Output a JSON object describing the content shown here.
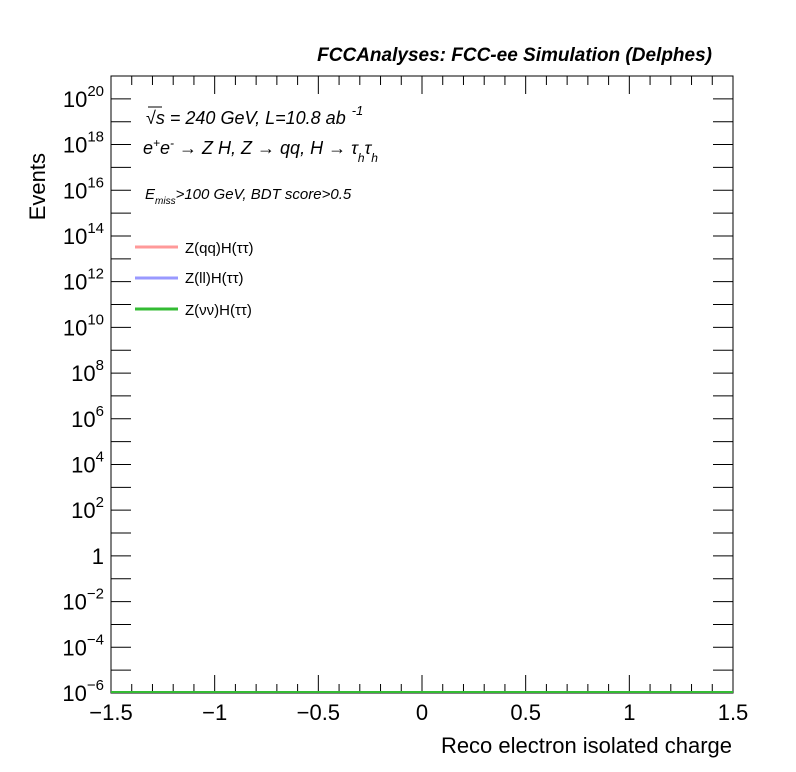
{
  "header": {
    "title": "FCCAnalyses: FCC-ee Simulation (Delphes)"
  },
  "annotations": {
    "line1": {
      "sqrt": "√s",
      "rest": " = 240 GeV, L=10.8 ab",
      "exponent": "-1"
    },
    "line2": {
      "e": "e",
      "plus": "+",
      "e2": "e",
      "minus": "-",
      "process": " → Z H, Z  → qq, H  → ",
      "tau1": "τ",
      "sub1": "h",
      "tau2": "τ",
      "sub2": "h"
    },
    "line3": {
      "e": "E",
      "sub": "miss",
      "rest": ">100 GeV, BDT score>0.5"
    }
  },
  "chart_data": {
    "type": "line",
    "xlabel": "Reco electron isolated charge",
    "ylabel": "Events",
    "xlim": [
      -1.5,
      1.5
    ],
    "ylim": [
      1e-06,
      1e+21
    ],
    "yscale": "log",
    "grid": false,
    "legend_position": "top-left",
    "x_tick_labels": [
      "−1.5",
      "−1",
      "−0.5",
      "0",
      "0.5",
      "1",
      "1.5"
    ],
    "x_tick_values": [
      -1.5,
      -1,
      -0.5,
      0,
      0.5,
      1,
      1.5
    ],
    "y_tick_labels": [
      {
        "base": "10",
        "exp": "−6"
      },
      {
        "base": "10",
        "exp": "−4"
      },
      {
        "base": "10",
        "exp": "−2"
      },
      {
        "base": "1",
        "exp": ""
      },
      {
        "base": "10",
        "exp": "2"
      },
      {
        "base": "10",
        "exp": "4"
      },
      {
        "base": "10",
        "exp": "6"
      },
      {
        "base": "10",
        "exp": "8"
      },
      {
        "base": "10",
        "exp": "10"
      },
      {
        "base": "10",
        "exp": "12"
      },
      {
        "base": "10",
        "exp": "14"
      },
      {
        "base": "10",
        "exp": "16"
      },
      {
        "base": "10",
        "exp": "18"
      },
      {
        "base": "10",
        "exp": "20"
      }
    ],
    "y_tick_exponents": [
      -6,
      -4,
      -2,
      0,
      2,
      4,
      6,
      8,
      10,
      12,
      14,
      16,
      18,
      20
    ],
    "series": [
      {
        "name": "Z(qq)H(ττ)",
        "color": "#ff9999",
        "x": [
          -1.5,
          1.5
        ],
        "values": [
          1e-06,
          1e-06
        ]
      },
      {
        "name": "Z(ll)H(ττ)",
        "color": "#9999ff",
        "x": [
          -1.5,
          1.5
        ],
        "values": [
          1e-06,
          1e-06
        ]
      },
      {
        "name": "Z(νν)H(ττ)",
        "color": "#33bb33",
        "x": [
          -1.5,
          1.5
        ],
        "values": [
          1e-06,
          1e-06
        ]
      }
    ]
  }
}
